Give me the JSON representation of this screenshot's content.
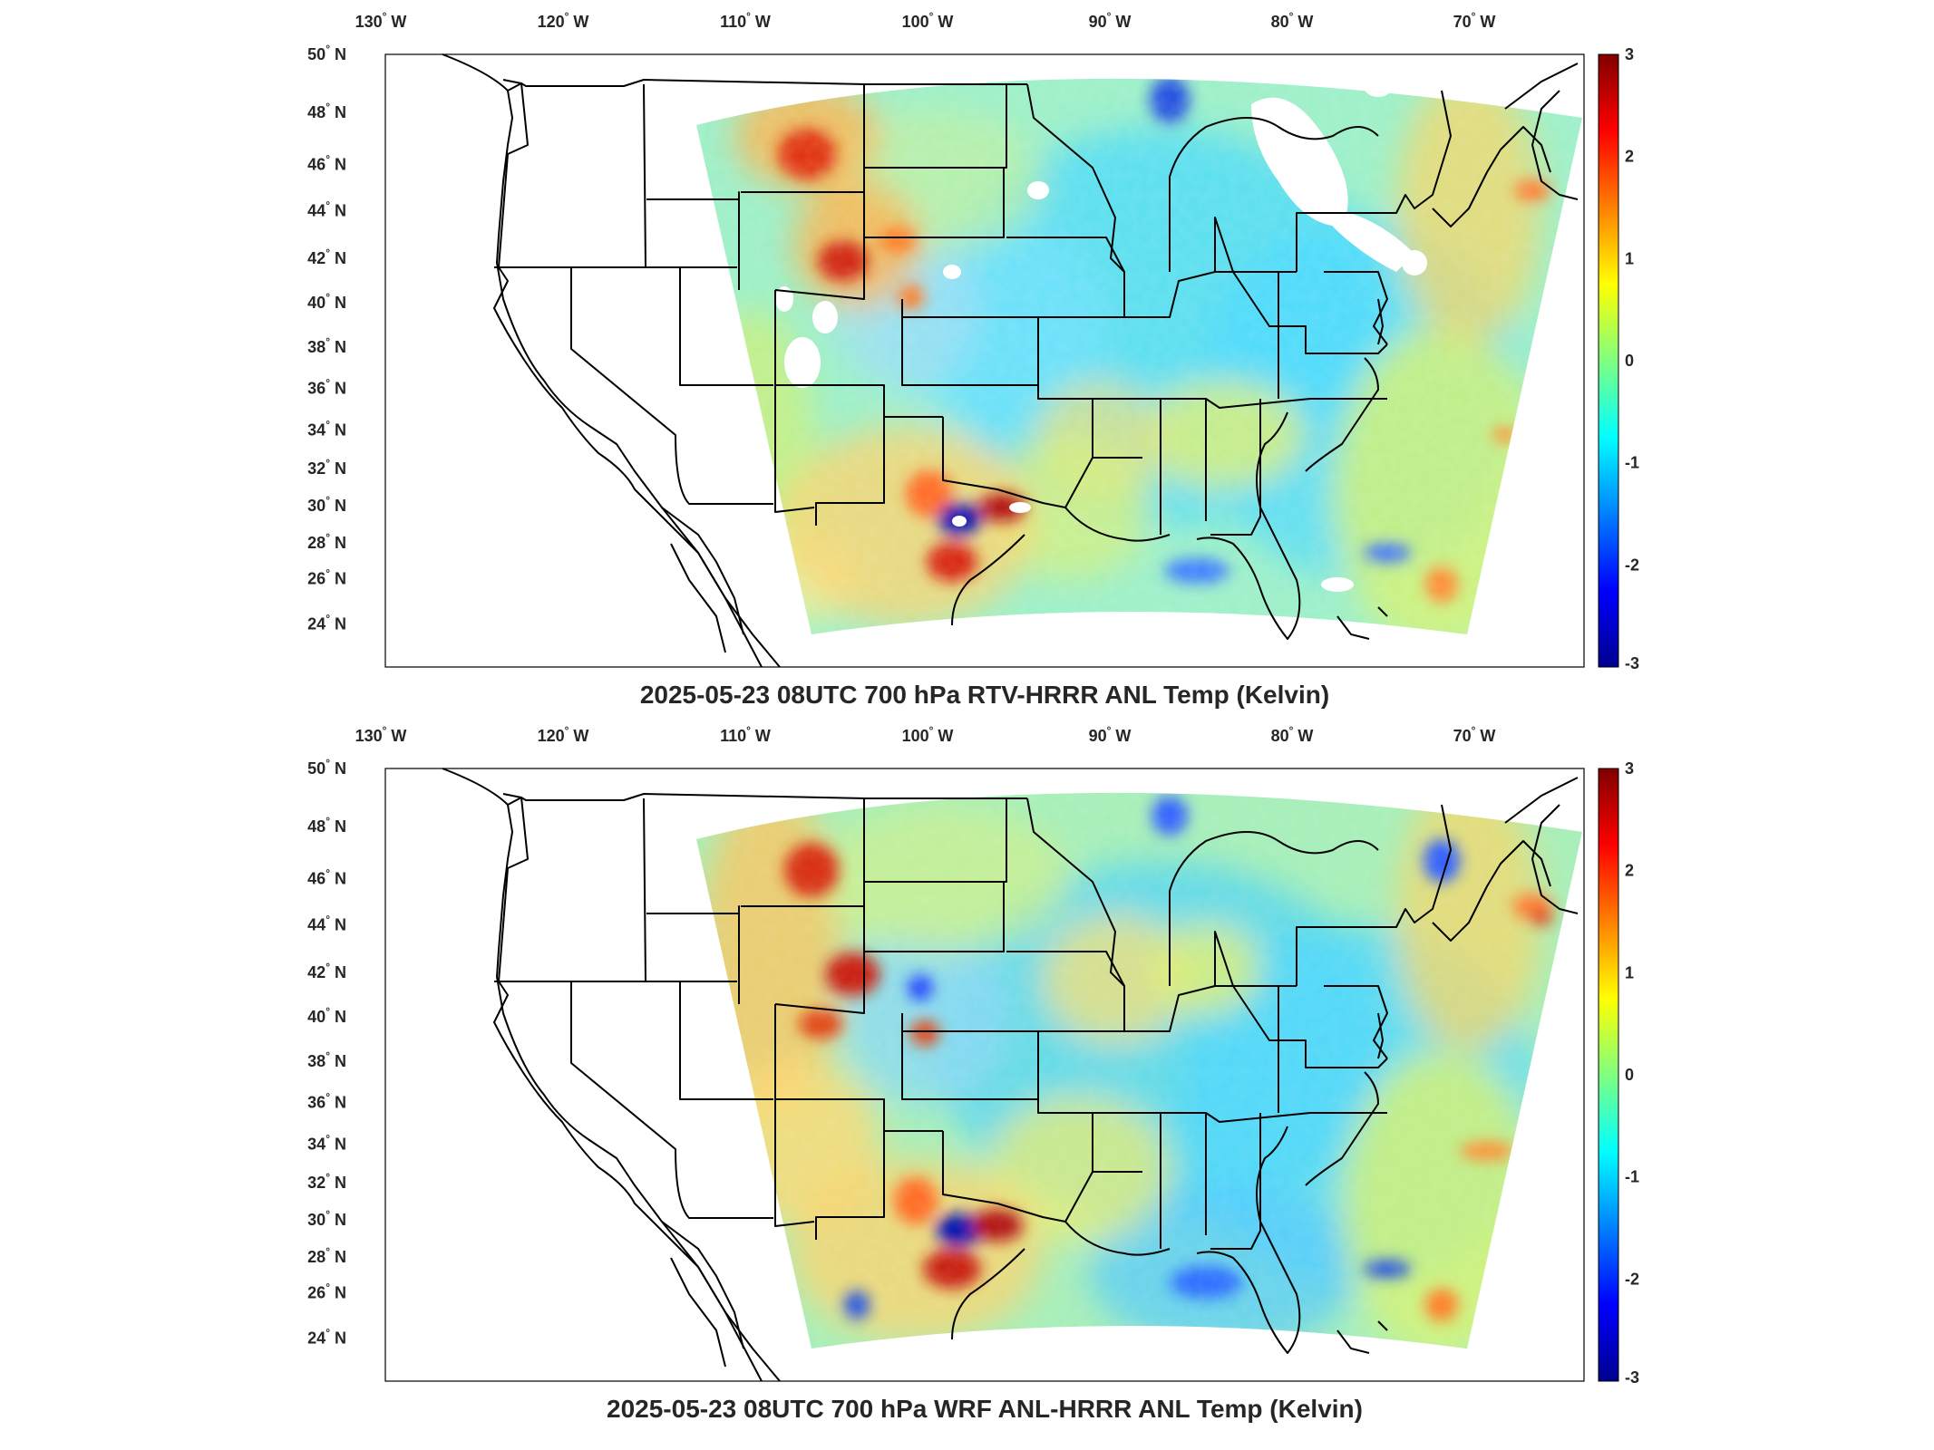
{
  "colors": {
    "border": "#000000",
    "title": "#262626",
    "label": "#262626",
    "colormap": [
      "#00008f",
      "#0000ff",
      "#0080ff",
      "#00ffff",
      "#80ff80",
      "#ffff00",
      "#ff8000",
      "#ff0000",
      "#800000"
    ]
  },
  "lon_ticks": [
    {
      "label": "130",
      "hemi": "W"
    },
    {
      "label": "120",
      "hemi": "W"
    },
    {
      "label": "110",
      "hemi": "W"
    },
    {
      "label": "100",
      "hemi": "W"
    },
    {
      "label": "90",
      "hemi": "W"
    },
    {
      "label": "80",
      "hemi": "W"
    },
    {
      "label": "70",
      "hemi": "W"
    }
  ],
  "lat_ticks": [
    {
      "label": "50",
      "hemi": "N"
    },
    {
      "label": "48",
      "hemi": "N"
    },
    {
      "label": "46",
      "hemi": "N"
    },
    {
      "label": "44",
      "hemi": "N"
    },
    {
      "label": "42",
      "hemi": "N"
    },
    {
      "label": "40",
      "hemi": "N"
    },
    {
      "label": "38",
      "hemi": "N"
    },
    {
      "label": "36",
      "hemi": "N"
    },
    {
      "label": "34",
      "hemi": "N"
    },
    {
      "label": "32",
      "hemi": "N"
    },
    {
      "label": "30",
      "hemi": "N"
    },
    {
      "label": "28",
      "hemi": "N"
    },
    {
      "label": "26",
      "hemi": "N"
    },
    {
      "label": "24",
      "hemi": "N"
    }
  ],
  "colorbar_ticks": [
    "3",
    "2",
    "1",
    "0",
    "-1",
    "-2",
    "-3"
  ],
  "panels": [
    {
      "title": "2025-05-23 08UTC 700 hPa RTV-HRRR ANL Temp (Kelvin)",
      "colorbar_range": [
        -3,
        3
      ],
      "missing_data": true,
      "features": [
        {
          "name": "Montana warm anomaly",
          "value": 2.5
        },
        {
          "name": "Wyoming warm anomaly",
          "value": 2.7
        },
        {
          "name": "Central Texas cold anomaly",
          "value": -3.0
        },
        {
          "name": "Central Texas warm anomaly",
          "value": 3.0
        },
        {
          "name": "South Texas warm anomaly",
          "value": 2.8
        }
      ]
    },
    {
      "title": "2025-05-23 08UTC 700 hPa WRF ANL-HRRR ANL Temp (Kelvin)",
      "colorbar_range": [
        -3,
        3
      ],
      "missing_data": false,
      "features": [
        {
          "name": "Montana warm anomaly",
          "value": 2.5
        },
        {
          "name": "Wyoming warm anomaly",
          "value": 2.8
        },
        {
          "name": "Central Texas cold anomaly",
          "value": -3.0
        },
        {
          "name": "Central Texas warm anomaly",
          "value": 3.0
        },
        {
          "name": "South Texas warm anomaly",
          "value": 2.9
        }
      ]
    }
  ]
}
